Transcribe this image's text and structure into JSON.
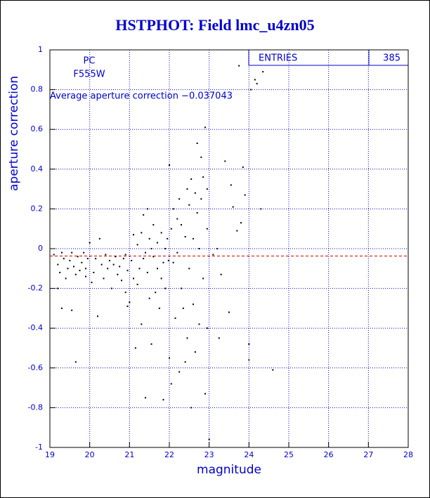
{
  "chart_data": {
    "type": "scatter",
    "title": "HSTPHOT: Field lmc_u4zn05",
    "x_label": "magnitude",
    "y_label": "aperture correction",
    "annotations": [
      "PC",
      "F555W",
      "Average aperture correction −0.037043"
    ],
    "stats": {
      "label": "ENTRIES",
      "entries": 385
    },
    "average_line": -0.037043,
    "average_color": "#cc0000",
    "color": "#000000",
    "grid": true,
    "grid_color": "#0000cc",
    "xlim": [
      19,
      28
    ],
    "xticks": [
      19,
      20,
      21,
      22,
      23,
      24,
      25,
      26,
      27,
      28
    ],
    "ylim": [
      -1,
      1
    ],
    "yticks": [
      -1,
      -0.8,
      -0.6,
      -0.4,
      -0.2,
      0,
      0.2,
      0.4,
      0.6,
      0.8,
      1
    ],
    "x": [
      19.1,
      19.2,
      19.25,
      19.3,
      19.35,
      19.4,
      19.45,
      19.5,
      19.55,
      19.6,
      19.65,
      19.7,
      19.75,
      19.8,
      19.85,
      19.9,
      19.95,
      19.3,
      19.55,
      19.65,
      19.2,
      19.9,
      20.0,
      20.05,
      20.1,
      20.15,
      20.2,
      20.25,
      20.3,
      20.35,
      20.4,
      20.45,
      20.5,
      20.55,
      20.6,
      20.65,
      20.7,
      20.75,
      20.8,
      20.85,
      20.9,
      20.95,
      20.9,
      21.0,
      20.95,
      21.05,
      21.1,
      21.1,
      21.15,
      21.2,
      21.2,
      21.25,
      21.3,
      21.3,
      21.35,
      21.35,
      21.4,
      21.4,
      21.45,
      21.45,
      21.5,
      21.5,
      21.55,
      21.55,
      21.6,
      21.6,
      21.65,
      21.7,
      21.7,
      21.75,
      21.8,
      21.8,
      21.85,
      21.85,
      21.9,
      21.9,
      21.95,
      21.98,
      22.0,
      22.0,
      22.05,
      22.05,
      22.1,
      22.1,
      22.15,
      22.2,
      22.2,
      22.25,
      22.25,
      22.3,
      22.3,
      22.35,
      22.4,
      22.4,
      22.45,
      22.45,
      22.5,
      22.5,
      22.55,
      22.55,
      22.6,
      22.6,
      22.65,
      22.65,
      22.7,
      22.7,
      22.75,
      22.75,
      22.8,
      22.8,
      22.85,
      22.9,
      22.9,
      22.95,
      22.95,
      23.0,
      22.95,
      22.85,
      23.1,
      23.2,
      23.25,
      23.3,
      23.4,
      23.5,
      23.55,
      23.6,
      23.7,
      23.75,
      23.8,
      23.85,
      23.9,
      24.05,
      24.0,
      24.0,
      24.2,
      24.35,
      24.3,
      24.6,
      24.15
    ],
    "values": [
      -0.03,
      -0.08,
      -0.12,
      -0.02,
      -0.05,
      -0.15,
      -0.1,
      -0.06,
      -0.02,
      -0.09,
      -0.13,
      -0.04,
      -0.11,
      -0.07,
      -0.02,
      -0.14,
      -0.05,
      -0.3,
      -0.31,
      -0.57,
      -0.2,
      -0.1,
      0.03,
      -0.17,
      -0.12,
      -0.05,
      -0.34,
      0.05,
      -0.08,
      -0.15,
      -0.03,
      -0.1,
      -0.06,
      -0.2,
      -0.08,
      -0.04,
      -0.13,
      -0.09,
      -0.16,
      -0.05,
      -0.03,
      -0.11,
      -0.22,
      -0.27,
      -0.29,
      -0.06,
      0.07,
      -0.15,
      -0.5,
      0.02,
      -0.18,
      -0.1,
      0.08,
      -0.38,
      0.17,
      -0.05,
      -0.02,
      -0.75,
      0.2,
      -0.12,
      0.05,
      -0.25,
      -0.48,
      0.0,
      -0.04,
      0.12,
      -0.22,
      -0.1,
      0.03,
      -0.3,
      -0.15,
      0.08,
      -0.76,
      -0.07,
      0.0,
      -0.2,
      0.05,
      -0.06,
      0.42,
      -0.55,
      -0.68,
      0.1,
      0.2,
      -0.07,
      -0.35,
      0.15,
      -0.02,
      0.25,
      -0.62,
      0.12,
      -0.2,
      -0.3,
      0.06,
      -0.57,
      0.3,
      -0.45,
      0.22,
      -0.1,
      0.35,
      -0.8,
      0.05,
      -0.28,
      0.28,
      -0.52,
      0.18,
      0.53,
      0.0,
      -0.38,
      0.46,
      0.25,
      -0.15,
      0.61,
      -0.73,
      0.1,
      -0.4,
      -0.96,
      0.3,
      0.36,
      -0.03,
      0.0,
      -0.45,
      -0.13,
      0.44,
      -0.32,
      0.32,
      0.21,
      0.09,
      0.92,
      0.13,
      0.41,
      0.27,
      0.8,
      -0.56,
      -0.48,
      0.83,
      0.89,
      0.2,
      -0.61,
      0.85
    ]
  }
}
